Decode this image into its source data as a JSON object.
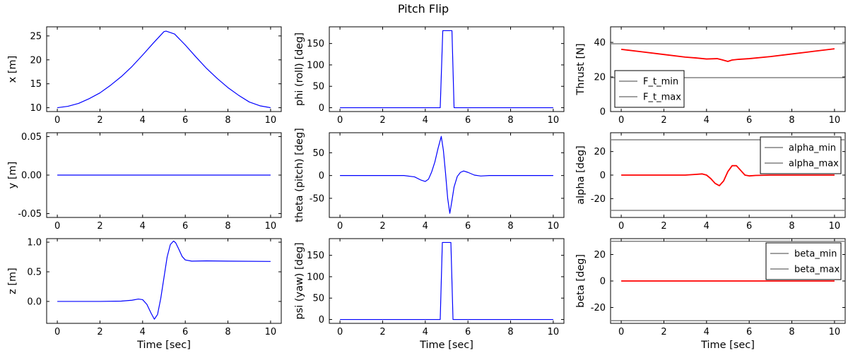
{
  "figure": {
    "title": "Pitch Flip"
  },
  "colors": {
    "series_blue": "#0000ff",
    "series_red": "#ff0000",
    "limit_gray": "#808080"
  },
  "chart_data": [
    {
      "id": "x",
      "type": "line",
      "ylabel": "x [m]",
      "xlabel": "",
      "xlim": [
        -0.5,
        10.5
      ],
      "ylim": [
        9.2,
        26.9
      ],
      "xticks": [
        0,
        2,
        4,
        6,
        8,
        10
      ],
      "yticks": [
        10,
        15,
        20,
        25
      ],
      "series": [
        {
          "color": "#0000ff",
          "width": 1.2,
          "x": [
            0,
            0.5,
            1,
            1.5,
            2,
            2.5,
            3,
            3.5,
            4,
            4.5,
            5,
            5.1,
            5.5,
            6,
            6.5,
            7,
            7.5,
            8,
            8.5,
            9,
            9.5,
            10
          ],
          "y": [
            10,
            10.3,
            10.9,
            11.9,
            13.1,
            14.7,
            16.5,
            18.6,
            21,
            23.5,
            25.9,
            26,
            25.4,
            23.1,
            20.6,
            18.2,
            16.1,
            14.2,
            12.6,
            11.2,
            10.4,
            10
          ]
        }
      ]
    },
    {
      "id": "phi",
      "type": "line",
      "ylabel": "phi (roll) [deg]",
      "xlabel": "",
      "xlim": [
        -0.5,
        10.5
      ],
      "ylim": [
        -9,
        189
      ],
      "xticks": [
        0,
        2,
        4,
        6,
        8,
        10
      ],
      "yticks": [
        0,
        50,
        100,
        150
      ],
      "series": [
        {
          "color": "#0000ff",
          "width": 1.2,
          "x": [
            0,
            4.7,
            4.82,
            5.25,
            5.35,
            10
          ],
          "y": [
            0,
            0,
            180,
            180,
            0,
            0
          ]
        }
      ]
    },
    {
      "id": "thrust",
      "type": "line",
      "ylabel": "Thrust [N]",
      "xlabel": "",
      "xlim": [
        -0.5,
        10.5
      ],
      "ylim": [
        0,
        49
      ],
      "xticks": [
        0,
        2,
        4,
        6,
        8,
        10
      ],
      "yticks": [
        0,
        20,
        40
      ],
      "hlines": [
        {
          "y": 19.6,
          "label": "F_t_min"
        },
        {
          "y": 39.2,
          "label": "F_t_max"
        }
      ],
      "legend_position": "lower-left",
      "series": [
        {
          "color": "#ff0000",
          "width": 1.8,
          "x": [
            0,
            1,
            2,
            3,
            3.5,
            4,
            4.5,
            4.7,
            5,
            5.2,
            5.5,
            6,
            7,
            8,
            9,
            10
          ],
          "y": [
            36,
            34.5,
            33,
            31.5,
            31,
            30.4,
            30.6,
            30,
            29,
            29.8,
            30.2,
            30.6,
            31.8,
            33.3,
            34.8,
            36.3
          ]
        }
      ]
    },
    {
      "id": "y",
      "type": "line",
      "ylabel": "y [m]",
      "xlabel": "",
      "xlim": [
        -0.5,
        10.5
      ],
      "ylim": [
        -0.055,
        0.055
      ],
      "xticks": [
        0,
        2,
        4,
        6,
        8,
        10
      ],
      "yticks": [
        -0.05,
        0,
        0.05
      ],
      "ytick_labels": [
        "-0.05",
        "0.00",
        "0.05"
      ],
      "series": [
        {
          "color": "#0000ff",
          "width": 1.2,
          "x": [
            0,
            10
          ],
          "y": [
            0,
            0
          ]
        }
      ]
    },
    {
      "id": "theta",
      "type": "line",
      "ylabel": "theta (pitch) [deg]",
      "xlabel": "",
      "xlim": [
        -0.5,
        10.5
      ],
      "ylim": [
        -92,
        94
      ],
      "xticks": [
        0,
        2,
        4,
        6,
        8,
        10
      ],
      "yticks": [
        -50,
        0,
        50
      ],
      "series": [
        {
          "color": "#0000ff",
          "width": 1.2,
          "x": [
            0,
            3,
            3.5,
            3.8,
            4,
            4.15,
            4.3,
            4.45,
            4.6,
            4.75,
            4.85,
            4.95,
            5.05,
            5.15,
            5.25,
            5.35,
            5.5,
            5.65,
            5.8,
            6,
            6.3,
            6.6,
            7,
            8,
            10
          ],
          "y": [
            0,
            0,
            -3,
            -10,
            -13,
            -8,
            8,
            30,
            60,
            86,
            55,
            5,
            -50,
            -83,
            -55,
            -25,
            -2,
            7,
            10,
            7,
            1,
            -1,
            0,
            0,
            0
          ]
        }
      ]
    },
    {
      "id": "alpha",
      "type": "line",
      "ylabel": "alpha [deg]",
      "xlabel": "",
      "xlim": [
        -0.5,
        10.5
      ],
      "ylim": [
        -36,
        36
      ],
      "xticks": [
        0,
        2,
        4,
        6,
        8,
        10
      ],
      "yticks": [
        -20,
        0,
        20
      ],
      "hlines": [
        {
          "y": -30,
          "label": "alpha_min"
        },
        {
          "y": 30,
          "label": "alpha_max"
        }
      ],
      "legend_position": "upper-right",
      "series": [
        {
          "color": "#ff0000",
          "width": 1.8,
          "x": [
            0,
            3,
            3.5,
            3.8,
            4,
            4.2,
            4.4,
            4.6,
            4.8,
            5,
            5.2,
            5.4,
            5.6,
            5.8,
            6,
            6.3,
            7,
            10
          ],
          "y": [
            0,
            0,
            0.6,
            1,
            0,
            -3,
            -7,
            -9,
            -5,
            3,
            8,
            8,
            4,
            0,
            -0.7,
            -0.3,
            0,
            0
          ]
        }
      ]
    },
    {
      "id": "z",
      "type": "line",
      "ylabel": "z [m]",
      "xlabel": "Time [sec]",
      "xlim": [
        -0.5,
        10.5
      ],
      "ylim": [
        -0.37,
        1.06
      ],
      "xticks": [
        0,
        2,
        4,
        6,
        8,
        10
      ],
      "yticks": [
        0,
        0.5,
        1
      ],
      "ytick_labels": [
        "0.0",
        "0.5",
        "1.0"
      ],
      "series": [
        {
          "color": "#0000ff",
          "width": 1.2,
          "x": [
            0,
            2,
            3,
            3.5,
            3.8,
            4,
            4.2,
            4.4,
            4.55,
            4.7,
            4.85,
            5,
            5.15,
            5.3,
            5.45,
            5.55,
            5.7,
            5.85,
            6,
            6.3,
            7,
            8,
            10
          ],
          "y": [
            0,
            0,
            0.005,
            0.02,
            0.04,
            0.03,
            -0.05,
            -0.2,
            -0.3,
            -0.22,
            0.05,
            0.4,
            0.75,
            0.96,
            1.02,
            0.99,
            0.88,
            0.76,
            0.7,
            0.68,
            0.685,
            0.68,
            0.675
          ]
        }
      ]
    },
    {
      "id": "psi",
      "type": "line",
      "ylabel": "psi (yaw) [deg]",
      "xlabel": "Time [sec]",
      "xlim": [
        -0.5,
        10.5
      ],
      "ylim": [
        -9,
        189
      ],
      "xticks": [
        0,
        2,
        4,
        6,
        8,
        10
      ],
      "yticks": [
        0,
        50,
        100,
        150
      ],
      "series": [
        {
          "color": "#0000ff",
          "width": 1.2,
          "x": [
            0,
            4.7,
            4.8,
            5.2,
            5.3,
            10
          ],
          "y": [
            0,
            0,
            180,
            180,
            0,
            0
          ]
        }
      ]
    },
    {
      "id": "beta",
      "type": "line",
      "ylabel": "beta [deg]",
      "xlabel": "Time [sec]",
      "xlim": [
        -0.5,
        10.5
      ],
      "ylim": [
        -32,
        32
      ],
      "xticks": [
        0,
        2,
        4,
        6,
        8,
        10
      ],
      "yticks": [
        -20,
        0,
        20
      ],
      "hlines": [
        {
          "y": -30,
          "label": "beta_min"
        },
        {
          "y": 30,
          "label": "beta_max"
        }
      ],
      "legend_position": "upper-right",
      "series": [
        {
          "color": "#ff0000",
          "width": 1.8,
          "x": [
            0,
            10
          ],
          "y": [
            0,
            0
          ]
        }
      ]
    }
  ]
}
